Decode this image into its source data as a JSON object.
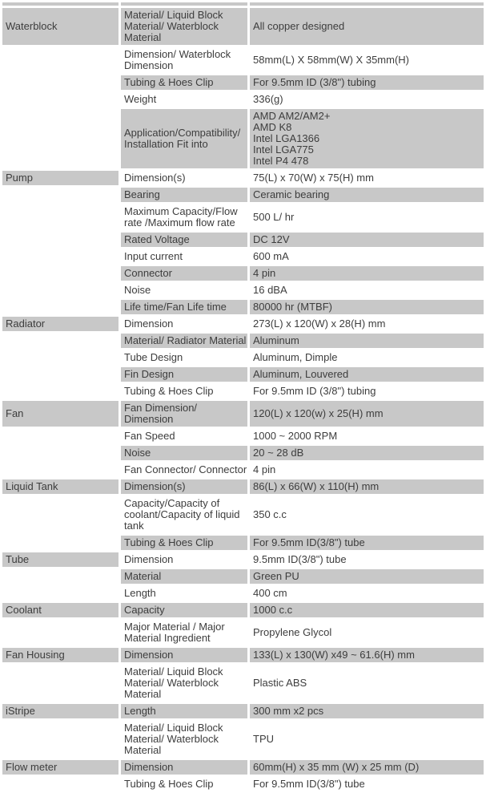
{
  "page": {
    "kind": "product-specification-table",
    "colors": {
      "cell_shade": "#c8c8c8",
      "text": "#3d3d3d",
      "background": "#ffffff"
    }
  },
  "table": {
    "rows": [
      {
        "category": "Waterblock",
        "property": "Material/ Liquid Block Material/ Waterblock Material",
        "value": "All copper designed",
        "shaded": true
      },
      {
        "category": "",
        "property": "Dimension/ Waterblock Dimension",
        "value": "58mm(L) X 58mm(W) X 35mm(H)",
        "shaded": false
      },
      {
        "category": "",
        "property": "Tubing & Hoes Clip",
        "value": "For 9.5mm ID (3/8\") tubing",
        "shaded": true
      },
      {
        "category": "",
        "property": "Weight",
        "value": "336(g)",
        "shaded": false
      },
      {
        "category": "",
        "property": "Application/Compatibility/ Installation Fit into",
        "value": "AMD AM2/AM2+\nAMD K8\nIntel LGA1366\nIntel LGA775\nIntel P4 478",
        "shaded": true
      },
      {
        "category": "Pump",
        "property": "Dimension(s)",
        "value": "75(L) x 70(W) x 75(H) mm",
        "shaded": false
      },
      {
        "category": "",
        "property": "Bearing",
        "value": "Ceramic bearing",
        "shaded": true
      },
      {
        "category": "",
        "property": "Maximum Capacity/Flow rate /Maximum flow rate",
        "value": "500 L/ hr",
        "shaded": false
      },
      {
        "category": "",
        "property": "Rated Voltage",
        "value": "DC 12V",
        "shaded": true
      },
      {
        "category": "",
        "property": "Input current",
        "value": "600 mA",
        "shaded": false
      },
      {
        "category": "",
        "property": "Connector",
        "value": "4 pin",
        "shaded": true
      },
      {
        "category": "",
        "property": "Noise",
        "value": "16 dBA",
        "shaded": false
      },
      {
        "category": "",
        "property": "Life time/Fan Life time",
        "value": "80000 hr (MTBF)",
        "shaded": true
      },
      {
        "category": "Radiator",
        "property": "Dimension",
        "value": "273(L) x 120(W) x 28(H) mm",
        "shaded": false
      },
      {
        "category": "",
        "property": "Material/ Radiator Material",
        "value": "Aluminum",
        "shaded": true
      },
      {
        "category": "",
        "property": "Tube Design",
        "value": "Aluminum, Dimple",
        "shaded": false
      },
      {
        "category": "",
        "property": "Fin Design",
        "value": "Aluminum, Louvered",
        "shaded": true
      },
      {
        "category": "",
        "property": "Tubing & Hoes Clip",
        "value": "For 9.5mm ID (3/8\") tubing",
        "shaded": false
      },
      {
        "category": "Fan",
        "property": "Fan Dimension/ Dimension",
        "value": "120(L) x 120(w) x 25(H) mm",
        "shaded": true
      },
      {
        "category": "",
        "property": "Fan Speed",
        "value": "1000 ~ 2000 RPM",
        "shaded": false
      },
      {
        "category": "",
        "property": "Noise",
        "value": "20 ~ 28 dB",
        "shaded": true
      },
      {
        "category": "",
        "property": "Fan Connector/ Connector",
        "value": "4 pin",
        "shaded": false
      },
      {
        "category": "Liquid Tank",
        "property": "Dimension(s)",
        "value": "86(L) x 66(W) x 110(H) mm",
        "shaded": true
      },
      {
        "category": "",
        "property": "Capacity/Capacity of coolant/Capacity of liquid tank",
        "value": "350 c.c",
        "shaded": false
      },
      {
        "category": "",
        "property": "Tubing & Hoes Clip",
        "value": "For 9.5mm ID(3/8\") tube",
        "shaded": true
      },
      {
        "category": "Tube",
        "property": "Dimension",
        "value": "9.5mm ID(3/8\") tube",
        "shaded": false
      },
      {
        "category": "",
        "property": "Material",
        "value": "Green PU",
        "shaded": true
      },
      {
        "category": "",
        "property": "Length",
        "value": "400 cm",
        "shaded": false
      },
      {
        "category": "Coolant",
        "property": "Capacity",
        "value": "1000 c.c",
        "shaded": true
      },
      {
        "category": "",
        "property": "Major Material / Major Material Ingredient",
        "value": "Propylene Glycol",
        "shaded": false
      },
      {
        "category": "Fan Housing",
        "property": "Dimension",
        "value": "133(L) x 130(W) x49 ~ 61.6(H) mm",
        "shaded": true
      },
      {
        "category": "",
        "property": "Material/ Liquid Block Material/ Waterblock Material",
        "value": "Plastic ABS",
        "shaded": false
      },
      {
        "category": "iStripe",
        "property": "Length",
        "value": "300 mm x2 pcs",
        "shaded": true
      },
      {
        "category": "",
        "property": "Material/ Liquid Block Material/ Waterblock Material",
        "value": "TPU",
        "shaded": false
      },
      {
        "category": "Flow meter",
        "property": "Dimension",
        "value": "60mm(H) x 35 mm (W) x 25 mm (D)",
        "shaded": true
      },
      {
        "category": "",
        "property": "Tubing & Hoes Clip",
        "value": "For 9.5mm ID(3/8\") tube",
        "shaded": false
      }
    ]
  }
}
